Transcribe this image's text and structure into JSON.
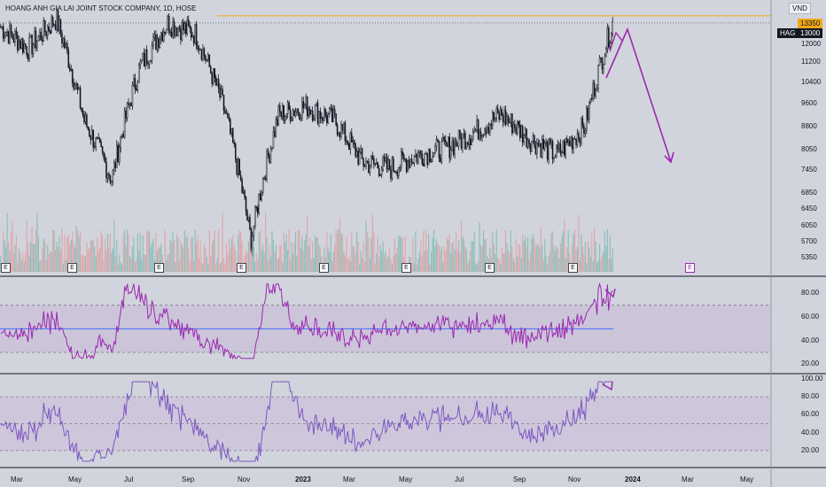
{
  "header": {
    "symbol_title": "HOANG ANH GIA LAI JOINT STOCK COMPANY, 1D, HOSE",
    "currency": "VND"
  },
  "price_axis": {
    "ticks": [
      "12000",
      "11200",
      "10400",
      "9600",
      "8800",
      "8050",
      "7450",
      "6850",
      "6450",
      "6050",
      "5700",
      "5350"
    ],
    "resistance_label": "13350",
    "last_symbol": "HAG",
    "last_price": "13000"
  },
  "rsi_axis": {
    "ticks": [
      "80.00",
      "60.00",
      "40.00",
      "20.00"
    ]
  },
  "stoch_axis": {
    "ticks": [
      "100.00",
      "80.00",
      "60.00",
      "40.00",
      "20.00"
    ]
  },
  "time_axis": {
    "labels": [
      "Mar",
      "May",
      "Jul",
      "Sep",
      "Nov",
      "2023",
      "Mar",
      "May",
      "Jul",
      "Sep",
      "Nov",
      "2024",
      "Mar",
      "May"
    ]
  },
  "events": {
    "label": "E"
  },
  "colors": {
    "background": "#d1d4dc",
    "candle": "#131722",
    "vol_up": "#5fb0a4",
    "vol_down": "#e88a8a",
    "resistance": "#f0a818",
    "projection": "#9c27b0",
    "rsi": "#9c27b0",
    "rsi_band": "#c9b8d9",
    "rsi_ma": "#2962ff",
    "stoch": "#7e57c2"
  },
  "chart_data": {
    "type": "candlestick",
    "title": "HOANG ANH GIA LAI JOINT STOCK COMPANY, 1D, HOSE",
    "currency": "VND",
    "price_range": [
      5200,
      13800
    ],
    "resistance": 13350,
    "last_price": 13000,
    "close_path": [
      {
        "period": "2022-02",
        "close": 12800
      },
      {
        "period": "2022-03",
        "close": 11800
      },
      {
        "period": "2022-04",
        "close": 13200
      },
      {
        "period": "2022-05",
        "close": 9000
      },
      {
        "period": "2022-06",
        "close": 7200
      },
      {
        "period": "2022-07",
        "close": 11000
      },
      {
        "period": "2022-08",
        "close": 13000
      },
      {
        "period": "2022-09",
        "close": 12500
      },
      {
        "period": "2022-10",
        "close": 9500
      },
      {
        "period": "2022-11",
        "close": 5700
      },
      {
        "period": "2022-12",
        "close": 9200
      },
      {
        "period": "2023-01",
        "close": 9500
      },
      {
        "period": "2023-02",
        "close": 9000
      },
      {
        "period": "2023-03",
        "close": 7700
      },
      {
        "period": "2023-04",
        "close": 7500
      },
      {
        "period": "2023-05",
        "close": 7900
      },
      {
        "period": "2023-06",
        "close": 8100
      },
      {
        "period": "2023-07",
        "close": 8600
      },
      {
        "period": "2023-08",
        "close": 9200
      },
      {
        "period": "2023-09",
        "close": 8400
      },
      {
        "period": "2023-10",
        "close": 7900
      },
      {
        "period": "2023-11",
        "close": 8800
      },
      {
        "period": "2023-12",
        "close": 13000
      }
    ],
    "projection": [
      {
        "period": "2023-12",
        "value": 13350
      },
      {
        "period": "2024-02",
        "value": 8000
      }
    ],
    "rsi": {
      "levels": [
        70,
        50,
        30
      ],
      "ylim": [
        15,
        90
      ],
      "last": 85
    },
    "stochastic": {
      "levels": [
        80,
        50,
        20
      ],
      "ylim": [
        5,
        102
      ],
      "last": 95
    }
  }
}
